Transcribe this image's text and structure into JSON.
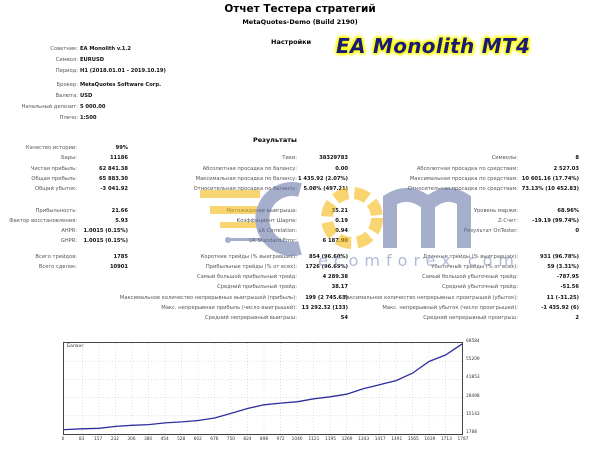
{
  "report": {
    "title": "Отчет Тестера стратегий",
    "subtitle": "MetaQuotes-Demo (Build 2190)"
  },
  "badge": {
    "text": "EA Monolith MT4",
    "text_color": "#1a1a7a",
    "glow_color": "#ffff00"
  },
  "watermark": {
    "text": "ecomforex.com",
    "accent": "#f5b400",
    "primary": "#5d6fa3"
  },
  "settings": {
    "heading": "Настройки",
    "items": [
      {
        "label": "Советник:",
        "value": "EA Monolith v.1.2"
      },
      {
        "label": "Символ:",
        "value": "EURUSD"
      },
      {
        "label": "Период:",
        "value": "H1 (2018.01.01 - 2019.10.19)"
      },
      {
        "label": "Брокер:",
        "value": "MetaQuotes Software Corp."
      },
      {
        "label": "Валюта:",
        "value": "USD"
      },
      {
        "label": "Начальный депозит:",
        "value": "5 000.00"
      },
      {
        "label": "Плечо:",
        "value": "1:500"
      }
    ]
  },
  "results": {
    "heading": "Результаты",
    "left_col": [
      {
        "label": "Качество истории:",
        "value": "99%"
      },
      {
        "label": "Бары:",
        "value": "11186"
      },
      {
        "label": "Чистая прибыль:",
        "value": "62 841.38"
      },
      {
        "label": "Общая прибыль:",
        "value": "65 883.30"
      },
      {
        "label": "Общий убыток:",
        "value": "-3 041.92"
      },
      {
        "label": "Прибыльность:",
        "value": "21.66"
      },
      {
        "label": "Фактор восстановления:",
        "value": "5.93"
      },
      {
        "label": "AHPR:",
        "value": "1.0015 (0.15%)"
      },
      {
        "label": "GHPR:",
        "value": "1.0015 (0.15%)"
      },
      {
        "label": "Всего трейдов:",
        "value": "1785"
      },
      {
        "label": "Всего сделок:",
        "value": "10901"
      }
    ],
    "mid_col": [
      {
        "label": "Тики:",
        "value": "38329783"
      },
      {
        "label": "Абсолютная просадка по балансу:",
        "value": "0.00"
      },
      {
        "label": "Максимальная просадка по балансу:",
        "value": "1 435.92 (2.07%)"
      },
      {
        "label": "Относительная просадка по балансу:",
        "value": "5.08% (497.21)"
      },
      {
        "label": "Матожидание выигрыша:",
        "value": "35.21"
      },
      {
        "label": "Коэффициент Шарпа:",
        "value": "0.19"
      },
      {
        "label": "LR Correlation:",
        "value": "0.94"
      },
      {
        "label": "LR Standard Error:",
        "value": "6 187.90"
      }
    ],
    "right_col": [
      {
        "label": "Символы:",
        "value": "8"
      },
      {
        "label": "Абсолютная просадка по средствам:",
        "value": "2 527.03"
      },
      {
        "label": "Максимальная просадка по средствам:",
        "value": "10 601.16 (17.74%)"
      },
      {
        "label": "Относительная просадка по средствам:",
        "value": "73.13% (10 452.83)"
      },
      {
        "label": "Уровень маржи:",
        "value": "68.96%"
      },
      {
        "label": "Z-Счет:",
        "value": "-19.19 (99.74%)"
      },
      {
        "label": "Результат OnTester:",
        "value": "0"
      }
    ],
    "trades_mid": [
      {
        "label": "Короткие трейды (% выигравших):",
        "value": "854 (96.60%)"
      },
      {
        "label": "Прибыльные трейды (% от всех):",
        "value": "1726 (96.69%)"
      },
      {
        "label": "Самый большой прибыльный трейд:",
        "value": "4 289.38"
      },
      {
        "label": "Средний прибыльный трейд:",
        "value": "38.17"
      },
      {
        "label": "Максимальное количество непрерывных выигрышей (прибыль):",
        "value": "199 (2 745.63)"
      },
      {
        "label": "Макс. непрерывная прибыль (число выигрышей):",
        "value": "13 292.32 (133)"
      },
      {
        "label": "Средний непрерывный выигрыш:",
        "value": "54"
      }
    ],
    "trades_right": [
      {
        "label": "Длинные трейды (% выигравших):",
        "value": "931 (96.78%)"
      },
      {
        "label": "Убыточные трейды (% от всех):",
        "value": "59 (3.31%)"
      },
      {
        "label": "Самый большой убыточный трейд:",
        "value": "-787.95"
      },
      {
        "label": "Средний убыточный трейд:",
        "value": "-51.56"
      },
      {
        "label": "Максимальное количество непрерывных проигрышей (убыток):",
        "value": "11 (-31.25)"
      },
      {
        "label": "Макс. непрерывный убыток (число проигрышей):",
        "value": "-1 435.92 (6)"
      },
      {
        "label": "Средний непрерывный проигрыш:",
        "value": "2"
      }
    ]
  },
  "chart": {
    "label": "Баланс",
    "line_color": "#2e2e9e",
    "y_ticks": [
      "68584",
      "55209",
      "41853",
      "28498",
      "15143",
      "1788"
    ],
    "x_ticks": [
      "0",
      "83",
      "157",
      "232",
      "306",
      "380",
      "454",
      "528",
      "602",
      "676",
      "750",
      "824",
      "898",
      "972",
      "1046",
      "1121",
      "1195",
      "1269",
      "1343",
      "1417",
      "1491",
      "1565",
      "1639",
      "1713",
      "1787"
    ]
  },
  "chart_data": {
    "type": "line",
    "title": "Баланс",
    "xlabel": "Trades",
    "ylabel": "Balance",
    "ylim": [
      1788,
      68584
    ],
    "y_ticks": [
      1788,
      15143,
      28498,
      41853,
      55209,
      68584
    ],
    "x_ticks": [
      0,
      83,
      157,
      232,
      306,
      380,
      454,
      528,
      602,
      676,
      750,
      824,
      898,
      972,
      1046,
      1121,
      1195,
      1269,
      1343,
      1417,
      1491,
      1565,
      1639,
      1713,
      1787
    ],
    "grid": true,
    "legend": "none",
    "series": [
      {
        "name": "Баланс",
        "x": [
          0,
          83,
          157,
          232,
          306,
          380,
          454,
          528,
          602,
          676,
          750,
          824,
          898,
          972,
          1046,
          1121,
          1195,
          1269,
          1343,
          1417,
          1491,
          1565,
          1639,
          1713,
          1787
        ],
        "values": [
          5000,
          5600,
          6000,
          7400,
          8200,
          8700,
          9900,
          10700,
          11700,
          13500,
          16900,
          20500,
          23200,
          24500,
          25400,
          27600,
          29100,
          31000,
          35000,
          38000,
          41000,
          46500,
          55000,
          59800,
          67800
        ]
      }
    ]
  }
}
